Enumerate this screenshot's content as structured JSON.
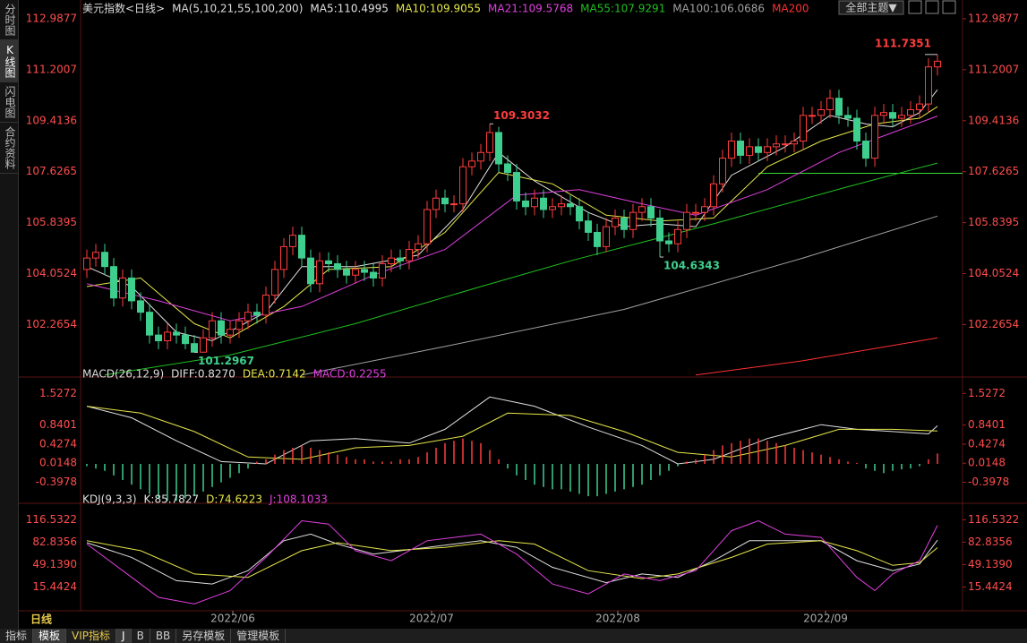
{
  "chart_data": [
    {
      "type": "candlestick",
      "title": "美元指数<日线>",
      "subtitle": "MA(5,10,21,55,100,200)",
      "up_color": "#ff3c3c",
      "down_color": "#3ecf8e",
      "open": [
        104.2,
        104.6,
        104.8,
        104.3,
        103.2,
        103.9,
        103.1,
        102.7,
        101.9,
        101.7,
        102.0,
        101.9,
        101.6,
        101.3,
        101.8,
        102.4,
        101.9,
        102.1,
        102.4,
        102.7,
        102.6,
        103.3,
        104.2,
        105.0,
        105.4,
        104.6,
        103.7,
        104.5,
        104.4,
        104.2,
        104.0,
        104.2,
        104.1,
        103.9,
        104.4,
        104.6,
        104.5,
        104.9,
        105.1,
        106.3,
        106.7,
        106.5,
        106.5,
        107.8,
        108.0,
        108.3,
        109.0,
        107.9,
        107.6,
        106.6,
        106.4,
        106.7,
        106.3,
        106.4,
        106.5,
        106.4,
        105.9,
        105.5,
        105.0,
        105.7,
        106.0,
        105.6,
        106.2,
        106.4,
        106.0,
        105.2,
        105.1,
        105.6,
        106.2,
        106.2,
        106.4,
        107.2,
        108.1,
        108.7,
        108.2,
        108.5,
        108.3,
        108.5,
        108.6,
        108.6,
        108.7,
        109.6,
        109.6,
        109.8,
        110.2,
        109.6,
        109.5,
        108.7,
        108.1,
        109.6,
        109.7,
        109.5,
        109.6,
        109.8,
        110.0,
        111.3
      ],
      "high": [
        104.9,
        105.1,
        105.1,
        104.6,
        104.2,
        104.2,
        103.4,
        103.0,
        102.2,
        102.3,
        102.3,
        102.2,
        101.9,
        102.1,
        102.7,
        102.7,
        102.4,
        102.7,
        103.0,
        103.0,
        103.6,
        104.5,
        105.3,
        105.7,
        105.7,
        104.9,
        104.8,
        104.8,
        104.7,
        104.5,
        104.5,
        104.5,
        104.4,
        104.7,
        104.9,
        104.9,
        105.2,
        105.4,
        106.6,
        107.0,
        107.0,
        106.8,
        108.1,
        108.3,
        108.6,
        109.3032,
        109.2,
        108.2,
        107.9,
        106.9,
        107.0,
        107.0,
        106.7,
        106.8,
        106.8,
        106.7,
        106.2,
        105.8,
        106.0,
        106.3,
        106.3,
        106.5,
        106.7,
        106.7,
        106.3,
        105.5,
        105.9,
        106.5,
        106.5,
        106.7,
        107.5,
        108.4,
        109.0,
        109.0,
        108.8,
        108.8,
        108.8,
        108.9,
        108.9,
        109.0,
        109.9,
        109.9,
        110.1,
        110.5,
        110.5,
        109.9,
        109.8,
        109.0,
        109.9,
        110.0,
        110.0,
        109.9,
        110.1,
        110.3,
        111.6,
        111.7351
      ],
      "low": [
        103.9,
        104.3,
        104.0,
        102.9,
        102.9,
        102.8,
        102.4,
        101.6,
        101.4,
        101.4,
        101.6,
        101.4,
        101.2967,
        101.35,
        101.5,
        101.6,
        101.6,
        101.8,
        102.1,
        102.3,
        102.3,
        103.0,
        103.9,
        104.7,
        104.3,
        103.4,
        103.4,
        104.1,
        103.9,
        103.7,
        103.7,
        103.8,
        103.6,
        103.6,
        104.1,
        104.2,
        104.2,
        104.6,
        104.8,
        106.0,
        106.2,
        106.2,
        106.2,
        107.5,
        107.7,
        108.0,
        107.6,
        107.3,
        106.3,
        106.1,
        106.1,
        106.0,
        106.0,
        106.1,
        106.1,
        105.6,
        105.2,
        104.7,
        104.8,
        105.4,
        105.3,
        105.3,
        105.9,
        105.7,
        104.6343,
        104.8,
        104.8,
        105.3,
        105.9,
        105.9,
        106.1,
        106.9,
        107.8,
        107.9,
        107.9,
        108.0,
        108.0,
        108.2,
        108.3,
        108.3,
        108.4,
        109.3,
        109.3,
        109.5,
        109.3,
        109.2,
        108.4,
        107.8,
        107.8,
        109.3,
        109.2,
        109.2,
        109.3,
        109.5,
        109.7,
        111.0
      ],
      "close": [
        104.6,
        104.8,
        104.3,
        103.2,
        103.9,
        103.1,
        102.7,
        101.9,
        101.7,
        102.0,
        101.9,
        101.6,
        101.3,
        101.8,
        102.4,
        101.9,
        102.1,
        102.4,
        102.7,
        102.6,
        103.3,
        104.2,
        105.0,
        105.4,
        104.6,
        103.7,
        104.5,
        104.4,
        104.2,
        104.0,
        104.2,
        104.1,
        103.9,
        104.4,
        104.6,
        104.5,
        104.9,
        105.1,
        106.3,
        106.7,
        106.5,
        106.5,
        107.8,
        108.0,
        108.3,
        109.0,
        107.9,
        107.6,
        106.6,
        106.4,
        106.7,
        106.3,
        106.4,
        106.5,
        106.4,
        105.9,
        105.5,
        105.0,
        105.7,
        106.0,
        105.6,
        106.2,
        106.4,
        106.0,
        105.2,
        105.1,
        105.6,
        106.2,
        106.2,
        106.4,
        107.2,
        108.1,
        108.7,
        108.2,
        108.5,
        108.3,
        108.5,
        108.6,
        108.6,
        108.7,
        109.6,
        109.6,
        109.8,
        110.2,
        109.6,
        109.5,
        108.7,
        108.1,
        109.6,
        109.7,
        109.5,
        109.6,
        109.8,
        110.0,
        111.3,
        111.5
      ],
      "xlim": [
        -0.7,
        97.8
      ],
      "xticks": [
        {
          "value": 16.3,
          "label": "2022/06"
        },
        {
          "value": 38.5,
          "label": "2022/07"
        },
        {
          "value": 59.3,
          "label": "2022/08"
        },
        {
          "value": 82.5,
          "label": "2022/09"
        }
      ],
      "ylim": [
        100.46,
        113.08
      ],
      "yticks": [
        102.2654,
        104.0524,
        105.8395,
        107.6265,
        109.4136,
        111.2007,
        112.9877
      ],
      "hline": {
        "value": 107.57,
        "color": "#33dd33"
      },
      "series": [
        {
          "name": "MA5:110.4995",
          "color": "#e0e0e0",
          "x": [
            0,
            5,
            10,
            14,
            20,
            24,
            30,
            37,
            42,
            46,
            50,
            56,
            60,
            64,
            68,
            72,
            78,
            83,
            87,
            90,
            93,
            95
          ],
          "values": [
            104.3,
            103.6,
            102.0,
            101.7,
            102.7,
            104.3,
            104.3,
            104.7,
            106.3,
            108.3,
            107.3,
            106.2,
            105.7,
            105.8,
            105.7,
            107.5,
            108.5,
            109.6,
            109.3,
            109.2,
            109.7,
            110.4995
          ]
        },
        {
          "name": "MA10:109.9055",
          "color": "#e6e64a",
          "x": [
            0,
            6,
            12,
            16,
            22,
            27,
            34,
            40,
            46,
            52,
            58,
            64,
            70,
            76,
            82,
            88,
            93,
            95
          ],
          "values": [
            103.6,
            103.9,
            102.3,
            101.8,
            102.9,
            104.2,
            104.3,
            105.5,
            107.6,
            107.2,
            106.1,
            105.9,
            106.0,
            107.8,
            108.7,
            109.3,
            109.5,
            109.9055
          ]
        },
        {
          "name": "MA21:109.5768",
          "color": "#e040e0",
          "x": [
            0,
            8,
            16,
            24,
            32,
            40,
            48,
            55,
            62,
            68,
            76,
            84,
            90,
            95
          ],
          "values": [
            103.7,
            103.1,
            102.4,
            102.9,
            104.0,
            104.9,
            106.8,
            107.0,
            106.5,
            106.1,
            107.0,
            108.3,
            109.0,
            109.5768
          ]
        },
        {
          "name": "MA55:107.9291",
          "color": "#20c020",
          "x": [
            2,
            16,
            30,
            44,
            54,
            70,
            85,
            95
          ],
          "values": [
            100.5,
            101.2,
            102.3,
            103.6,
            104.5,
            105.8,
            107.1,
            107.9291
          ]
        },
        {
          "name": "MA100:106.0686",
          "color": "#a0a0a0",
          "x": [
            24,
            40,
            60,
            80,
            95
          ],
          "values": [
            100.5,
            101.5,
            102.8,
            104.6,
            106.0686
          ]
        },
        {
          "name": "MA200",
          "color": "#ff3030",
          "x": [
            68,
            80,
            95
          ],
          "values": [
            100.5,
            101.0,
            101.8
          ]
        }
      ]
    },
    {
      "type": "macd",
      "title": "MACD(26,12,9)",
      "ylim": [
        -0.815,
        1.805
      ],
      "yticks": [
        -0.3978,
        0.0148,
        0.4274,
        0.8401,
        1.5272
      ],
      "series": [
        {
          "name": "DIFF:0.8270",
          "color": "#e0e0e0",
          "x": [
            0,
            5,
            10,
            15,
            20,
            25,
            30,
            36,
            40,
            45,
            50,
            56,
            62,
            66,
            70,
            76,
            82,
            86,
            90,
            94,
            95
          ],
          "values": [
            1.25,
            1.0,
            0.5,
            0.05,
            0.0,
            0.5,
            0.55,
            0.45,
            0.75,
            1.45,
            1.25,
            0.8,
            0.4,
            0.0,
            0.1,
            0.55,
            0.85,
            0.75,
            0.7,
            0.65,
            0.827
          ]
        },
        {
          "name": "DEA:0.7142",
          "color": "#e6e64a",
          "x": [
            0,
            6,
            12,
            18,
            24,
            30,
            36,
            42,
            47,
            54,
            60,
            66,
            72,
            78,
            84,
            90,
            95
          ],
          "values": [
            1.25,
            1.1,
            0.7,
            0.15,
            0.1,
            0.35,
            0.4,
            0.6,
            1.1,
            1.05,
            0.7,
            0.25,
            0.15,
            0.4,
            0.75,
            0.75,
            0.7142
          ]
        },
        {
          "name": "MACD:0.2255",
          "color": "#e040e0",
          "up_color": "#ff3c3c",
          "down_color": "#3ecf8e",
          "values": [
            -0.05,
            -0.1,
            -0.15,
            -0.25,
            -0.35,
            -0.45,
            -0.55,
            -0.65,
            -0.75,
            -0.8,
            -0.8,
            -0.75,
            -0.7,
            -0.6,
            -0.5,
            -0.4,
            -0.3,
            -0.2,
            -0.1,
            0.05,
            0.1,
            0.2,
            0.3,
            0.35,
            0.4,
            0.35,
            0.3,
            0.25,
            0.2,
            0.15,
            0.1,
            0.1,
            0.05,
            0.05,
            0.05,
            0.1,
            0.1,
            0.15,
            0.25,
            0.35,
            0.45,
            0.5,
            0.55,
            0.5,
            0.45,
            0.3,
            0.1,
            -0.1,
            -0.25,
            -0.35,
            -0.45,
            -0.5,
            -0.55,
            -0.55,
            -0.6,
            -0.65,
            -0.7,
            -0.7,
            -0.65,
            -0.6,
            -0.55,
            -0.5,
            -0.45,
            -0.35,
            -0.25,
            -0.15,
            -0.05,
            0.05,
            0.1,
            0.2,
            0.3,
            0.4,
            0.45,
            0.5,
            0.55,
            0.55,
            0.5,
            0.45,
            0.4,
            0.35,
            0.3,
            0.25,
            0.2,
            0.15,
            0.1,
            0.05,
            0.02,
            -0.1,
            -0.15,
            -0.2,
            -0.15,
            -0.12,
            -0.1,
            -0.05,
            0.1,
            0.2255
          ]
        }
      ]
    },
    {
      "type": "line",
      "title": "KDJ(9,3,3)",
      "ylim": [
        -18.9,
        137.2
      ],
      "yticks": [
        15.4424,
        {
          "value": 49.139,
          "label": "49.1390"
        },
        82.8356,
        116.5322
      ],
      "series": [
        {
          "name": "K:85.7827",
          "color": "#e0e0e0",
          "x": [
            0,
            5,
            10,
            14,
            18,
            22,
            25,
            28,
            32,
            38,
            44,
            48,
            52,
            58,
            62,
            66,
            70,
            74,
            78,
            82,
            86,
            90,
            93,
            95
          ],
          "values": [
            82,
            60,
            25,
            20,
            40,
            85,
            95,
            80,
            65,
            75,
            85,
            75,
            45,
            22,
            35,
            30,
            55,
            85,
            85,
            85,
            55,
            40,
            50,
            85.7827
          ]
        },
        {
          "name": "D:74.6223",
          "color": "#e6e64a",
          "x": [
            0,
            6,
            12,
            18,
            24,
            28,
            34,
            40,
            46,
            50,
            56,
            62,
            66,
            72,
            76,
            82,
            86,
            90,
            93,
            95
          ],
          "values": [
            85,
            70,
            35,
            30,
            70,
            82,
            70,
            75,
            85,
            80,
            40,
            28,
            35,
            60,
            80,
            85,
            70,
            48,
            52,
            74.6223
          ]
        },
        {
          "name": "J:108.1033",
          "color": "#e040e0",
          "x": [
            0,
            4,
            8,
            12,
            16,
            20,
            24,
            27,
            30,
            34,
            38,
            44,
            48,
            52,
            56,
            60,
            64,
            68,
            72,
            75,
            78,
            82,
            86,
            88,
            90,
            93,
            95
          ],
          "values": [
            80,
            40,
            0,
            -10,
            10,
            60,
            115,
            110,
            70,
            55,
            85,
            95,
            65,
            20,
            5,
            35,
            25,
            40,
            100,
            115,
            95,
            90,
            30,
            10,
            35,
            55,
            108.1033
          ]
        }
      ]
    }
  ],
  "ui": {
    "sidebar": [
      "分时图",
      "K线图",
      "闪电图",
      "合约资料"
    ],
    "theme_button": "全部主题▼",
    "period": "日线",
    "tabs": [
      "指标",
      "模板",
      "VIP指标",
      "J",
      "B",
      "BB",
      "另存模板",
      "管理模板"
    ]
  }
}
